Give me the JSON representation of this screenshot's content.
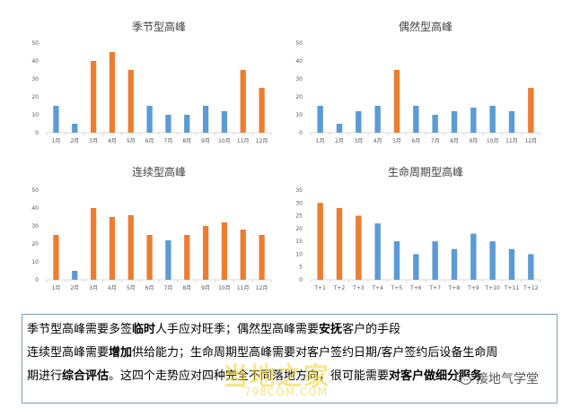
{
  "chart_data": [
    {
      "type": "bar",
      "title": "季节型高峰",
      "categories": [
        "1月",
        "2月",
        "3月",
        "4月",
        "5月",
        "6月",
        "7月",
        "8月",
        "9月",
        "10月",
        "11月",
        "12月"
      ],
      "values": [
        15,
        5,
        40,
        45,
        35,
        15,
        10,
        10,
        15,
        12,
        35,
        25
      ],
      "peak": [
        false,
        false,
        true,
        true,
        true,
        false,
        false,
        false,
        false,
        false,
        true,
        true
      ],
      "ylim": [
        0,
        50
      ],
      "yticks": [
        0,
        10,
        20,
        30,
        40,
        50
      ]
    },
    {
      "type": "bar",
      "title": "偶然型高峰",
      "categories": [
        "1月",
        "2月",
        "3月",
        "4月",
        "5月",
        "6月",
        "7月",
        "8月",
        "9月",
        "10月",
        "11月",
        "12月"
      ],
      "values": [
        15,
        5,
        12,
        15,
        35,
        15,
        10,
        12,
        14,
        15,
        12,
        25
      ],
      "peak": [
        false,
        false,
        false,
        false,
        true,
        false,
        false,
        false,
        false,
        false,
        false,
        true
      ],
      "ylim": [
        0,
        50
      ],
      "yticks": [
        0,
        10,
        20,
        30,
        40,
        50
      ]
    },
    {
      "type": "bar",
      "title": "连续型高峰",
      "categories": [
        "1月",
        "2月",
        "3月",
        "4月",
        "5月",
        "6月",
        "7月",
        "8月",
        "9月",
        "10月",
        "11月",
        "12月"
      ],
      "values": [
        25,
        5,
        40,
        35,
        36,
        25,
        22,
        25,
        30,
        32,
        28,
        25
      ],
      "peak": [
        true,
        false,
        true,
        true,
        true,
        true,
        false,
        true,
        true,
        true,
        true,
        true
      ],
      "ylim": [
        0,
        50
      ],
      "yticks": [
        0,
        10,
        20,
        30,
        40,
        50
      ]
    },
    {
      "type": "bar",
      "title": "生命周期型高峰",
      "categories": [
        "T+1",
        "T+2",
        "T+3",
        "T+4",
        "T+5",
        "T+6",
        "T+7",
        "T+8",
        "T+9",
        "T+10",
        "T+11",
        "T+12"
      ],
      "values": [
        30,
        28,
        25,
        22,
        15,
        10,
        15,
        12,
        18,
        15,
        12,
        10
      ],
      "peak": [
        true,
        true,
        true,
        false,
        false,
        false,
        false,
        false,
        false,
        false,
        false,
        false
      ],
      "ylim": [
        0,
        35
      ],
      "yticks": [
        0,
        5,
        10,
        15,
        20,
        25,
        30,
        35
      ]
    }
  ],
  "colors": {
    "peak": "#ed7d31",
    "normal": "#5b9bd5",
    "axis": "#d9d9d9",
    "tick_text": "#595959"
  },
  "caption": {
    "line1_a": "季节型高峰需要多签",
    "line1_b": "临时",
    "line1_c": "人手应对旺季；偶然型高峰需要",
    "line1_d": "安抚",
    "line1_e": "客户的手段",
    "line2_a": "连续型高峰需要",
    "line2_b": "增加",
    "line2_c": "供给能力；生命周期型高峰需要对客户签约日期/客户签约后设备生命周",
    "line3_a": "期进行",
    "line3_b": "综合评估",
    "line3_c": "。这四个走势应对四种完全不同落地方向，很可能需要",
    "line3_d": "对客户做细分服务"
  },
  "watermark": {
    "logo_text": "当地之家",
    "url": "798COM.COM"
  },
  "wechat": {
    "account_name": "接地气学堂",
    "icon": "wechat-icon"
  }
}
